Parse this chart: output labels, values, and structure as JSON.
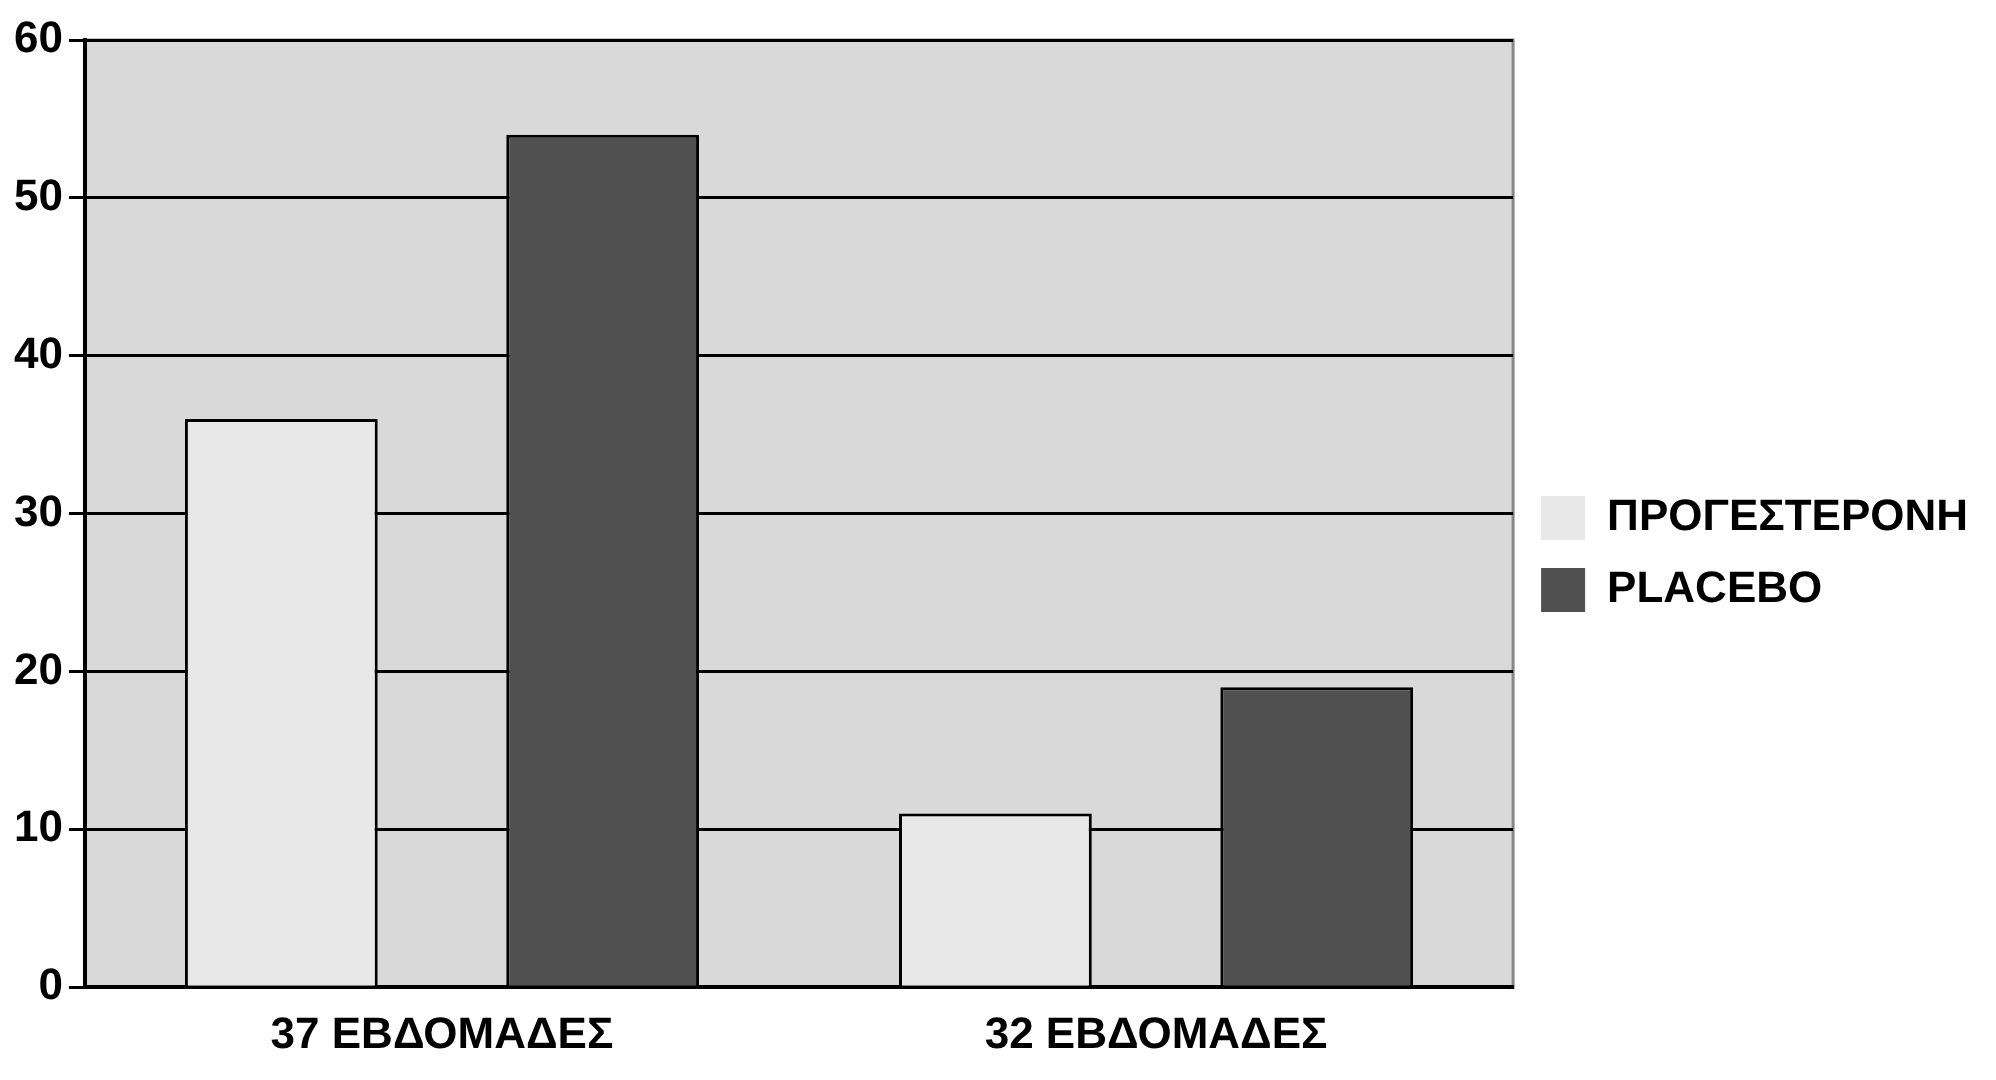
{
  "chart_data": {
    "type": "bar",
    "categories": [
      "37 ΕΒΔΟΜΑΔΕΣ",
      "32 ΕΒΔΟΜΑΔΕΣ"
    ],
    "series": [
      {
        "name": "ΠΡΟΓΕΣΤΕΡΟΝΗ",
        "color": "#e8e8e8",
        "values": [
          36,
          11
        ]
      },
      {
        "name": "PLACEBO",
        "color": "#505050",
        "values": [
          54,
          19
        ]
      }
    ],
    "ylim": [
      0,
      60
    ],
    "yticks": [
      0,
      10,
      20,
      30,
      40,
      50,
      60
    ],
    "grid": "y",
    "legend": "right"
  }
}
